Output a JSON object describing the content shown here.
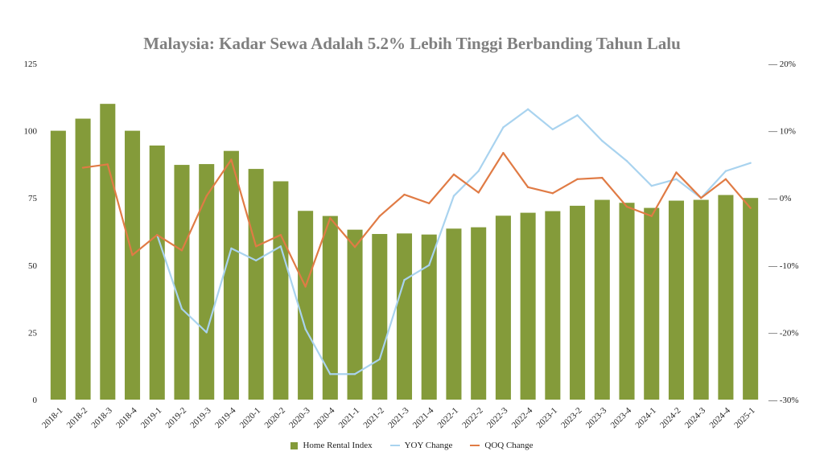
{
  "chart_data": {
    "type": "bar",
    "title": "Malaysia: Kadar Sewa Adalah 5.2% Lebih Tinggi Berbanding Tahun Lalu",
    "categories": [
      "2018-1",
      "2018-2",
      "2018-3",
      "2018-4",
      "2019-1",
      "2019-2",
      "2019-3",
      "2019-4",
      "2020-1",
      "2020-2",
      "2020-3",
      "2020-4",
      "2021-1",
      "2021-2",
      "2021-3",
      "2021-4",
      "2022-1",
      "2022-2",
      "2022-3",
      "2022-4",
      "2023-1",
      "2023-2",
      "2023-3",
      "2023-4",
      "2024-1",
      "2024-2",
      "2024-3",
      "2024-4",
      "2025-1"
    ],
    "series": [
      {
        "name": "Home Rental Index",
        "kind": "bar",
        "axis": "left",
        "color": "#849b3a",
        "values": [
          100,
          104.5,
          110,
          100,
          94.5,
          87.3,
          87.6,
          92.5,
          85.8,
          81.2,
          70.2,
          68.3,
          63.2,
          61.6,
          61.8,
          61.4,
          63.6,
          64.1,
          68.4,
          69.5,
          70.1,
          72.1,
          74.3,
          73.2,
          71.3,
          74,
          74.3,
          76.1,
          75
        ]
      },
      {
        "name": "YOY Change",
        "kind": "line",
        "axis": "right",
        "color": "#a9d3ef",
        "values": [
          null,
          null,
          null,
          null,
          -5.5,
          -16.5,
          -20,
          -7.5,
          -9.3,
          -7.2,
          -19.5,
          -26.2,
          -26.2,
          -24,
          -12.2,
          -10,
          0.3,
          4,
          10.5,
          13.2,
          10.2,
          12.3,
          8.5,
          5.5,
          1.8,
          2.8,
          0,
          4,
          5.2
        ]
      },
      {
        "name": "QOQ Change",
        "kind": "line",
        "axis": "right",
        "color": "#e07b45",
        "values": [
          null,
          4.5,
          5.0,
          -8.5,
          -5.5,
          -7.8,
          0.3,
          5.7,
          -7.2,
          -5.5,
          -13.2,
          -3.0,
          -7.3,
          -2.7,
          0.5,
          -0.8,
          3.5,
          0.8,
          6.7,
          1.6,
          0.7,
          2.8,
          3.0,
          -1.3,
          -2.7,
          3.8,
          0,
          2.8,
          -1.5
        ]
      }
    ],
    "y_left": {
      "min": 0,
      "max": 125,
      "ticks": [
        0,
        25,
        50,
        75,
        100,
        125
      ]
    },
    "y_right": {
      "min": -30,
      "max": 20,
      "ticks": [
        -30,
        -20,
        -10,
        0,
        10,
        20
      ],
      "tick_labels": [
        "— -30%",
        "— -20%",
        "— -10%",
        "— 0%",
        "— 10%",
        "— 20%"
      ]
    },
    "grid": false,
    "legend_position": "bottom"
  }
}
